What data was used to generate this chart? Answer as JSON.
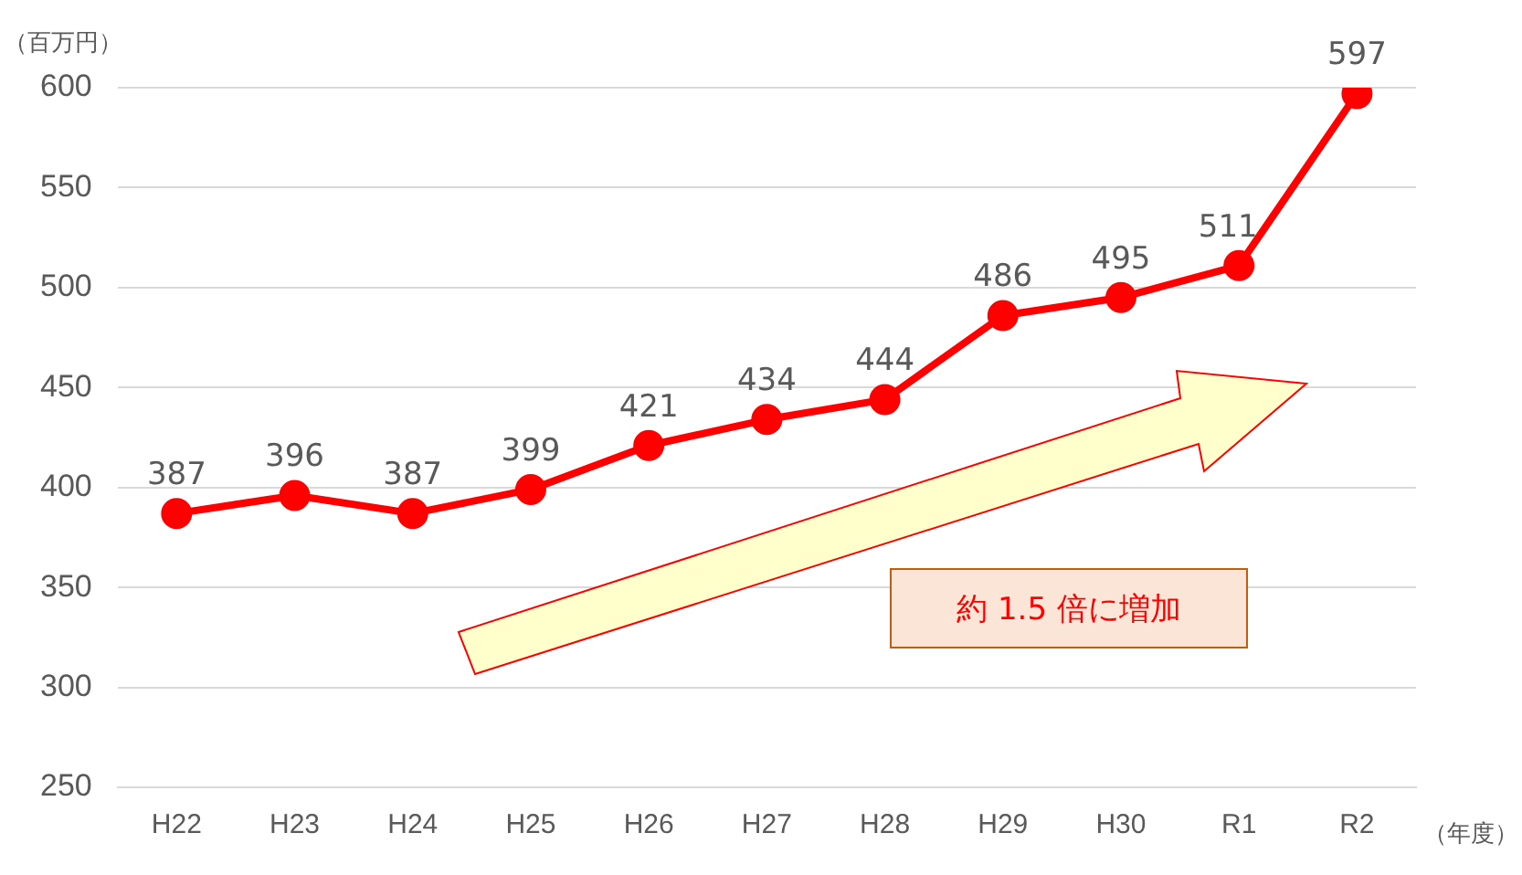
{
  "chart_data": {
    "type": "line",
    "ylabel": "（百万円）",
    "xlabel": "（年度）",
    "categories": [
      "H22",
      "H23",
      "H24",
      "H25",
      "H26",
      "H27",
      "H28",
      "H29",
      "H30",
      "R1",
      "R2"
    ],
    "series": [
      {
        "color": "#ff0000",
        "values": [
          387,
          396,
          387,
          399,
          421,
          434,
          444,
          486,
          495,
          511,
          597
        ]
      }
    ],
    "ylim": [
      250,
      600
    ],
    "yticks": [
      250,
      300,
      350,
      400,
      450,
      500,
      550,
      600
    ],
    "grid": "y",
    "marker": "circle",
    "line_style": "solid",
    "data_labels": true,
    "legend": false,
    "annotations": [
      "約 1.5 倍に増加"
    ]
  }
}
